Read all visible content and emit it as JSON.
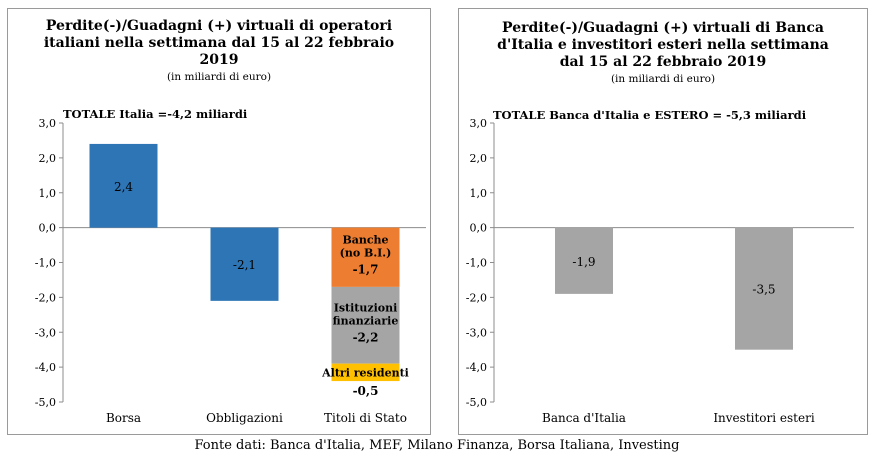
{
  "source": "Fonte dati: Banca d'Italia, MEF, Milano Finanza, Borsa Italiana, Investing",
  "chart_data": [
    {
      "type": "bar",
      "title_lines": [
        "Perdite(-)/Guadagni (+) virtuali di operatori",
        "italiani nella settimana dal 15 al 22 febbraio",
        "2019"
      ],
      "subtitle": "(in miliardi di euro)",
      "total": "TOTALE Italia =-4,2 miliardi",
      "categories": [
        "Borsa",
        "Obbligazioni",
        "Titoli di Stato"
      ],
      "values": [
        2.4,
        -2.1,
        -4.4
      ],
      "value_labels": [
        "2,4",
        "-2,1",
        ""
      ],
      "colors": [
        "#2e75b6",
        "#2e75b6",
        "#2e75b6"
      ],
      "stacked_components": {
        "category": "Titoli di Stato",
        "segments": [
          {
            "label_lines": [
              "Banche",
              "(no B.I.)"
            ],
            "value": -1.7,
            "value_label": "-1,7",
            "color": "#ed7d31"
          },
          {
            "label_lines": [
              "Istituzioni",
              "finanziarie"
            ],
            "value": -2.2,
            "value_label": "-2,2",
            "color": "#a5a5a5"
          },
          {
            "label_lines": [
              "Altri residenti"
            ],
            "value": -0.5,
            "value_label": "-0,5",
            "color": "#ffc000"
          }
        ]
      },
      "ylim": [
        -5,
        3
      ],
      "yticks": [
        "3,0",
        "2,0",
        "1,0",
        "0,0",
        "-1,0",
        "-2,0",
        "-3,0",
        "-4,0",
        "-5,0"
      ],
      "grid": false,
      "legend": "none"
    },
    {
      "type": "bar",
      "title_lines": [
        "Perdite(-)/Guadagni (+)  virtuali di Banca",
        "d'Italia e investitori esteri nella settimana",
        "dal 15 al 22 febbraio 2019"
      ],
      "subtitle": "(in miliardi di euro)",
      "total": "TOTALE Banca d'Italia e ESTERO = -5,3 miliardi",
      "categories": [
        "Banca d'Italia",
        "Investitori esteri"
      ],
      "values": [
        -1.9,
        -3.5
      ],
      "value_labels": [
        "-1,9",
        "-3,5"
      ],
      "colors": [
        "#a5a5a5",
        "#a5a5a5"
      ],
      "ylim": [
        -5,
        3
      ],
      "yticks": [
        "3,0",
        "2,0",
        "1,0",
        "0,0",
        "-1,0",
        "-2,0",
        "-3,0",
        "-4,0",
        "-5,0"
      ],
      "grid": false,
      "legend": "none"
    }
  ]
}
